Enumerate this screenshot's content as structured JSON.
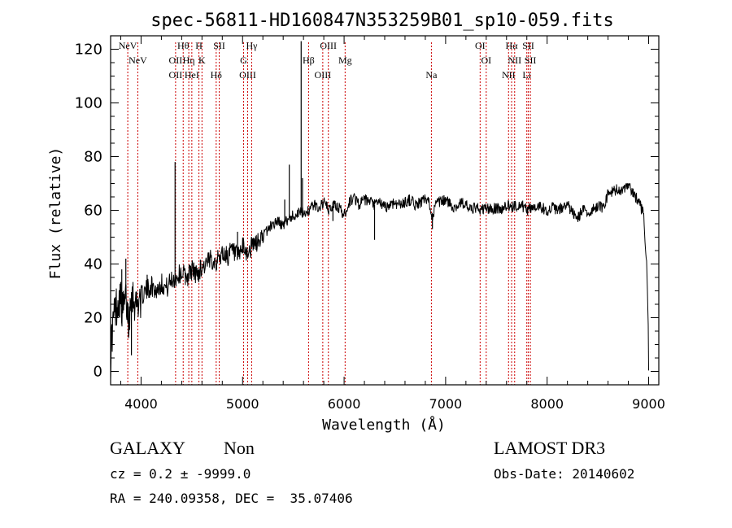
{
  "chart_data": {
    "type": "line",
    "title": "spec-56811-HD160847N353259B01_sp10-059.fits",
    "xlabel": "Wavelength (Å)",
    "ylabel": "Flux (relative)",
    "xlim": [
      3700,
      9100
    ],
    "ylim": [
      -5,
      125
    ],
    "xticks": [
      4000,
      5000,
      6000,
      7000,
      8000,
      9000
    ],
    "yticks": [
      0,
      20,
      40,
      60,
      80,
      100,
      120
    ],
    "grid": false,
    "series": [
      {
        "name": "spectrum",
        "x": [
          3700,
          3710,
          3730,
          3760,
          3790,
          3820,
          3850,
          3880,
          3900,
          3920,
          3950,
          3980,
          4000,
          4050,
          4100,
          4150,
          4200,
          4250,
          4300,
          4350,
          4400,
          4450,
          4500,
          4550,
          4600,
          4650,
          4700,
          4750,
          4800,
          4850,
          4900,
          4950,
          5000,
          5050,
          5100,
          5150,
          5200,
          5250,
          5300,
          5350,
          5400,
          5450,
          5500,
          5550,
          5600,
          5650,
          5700,
          5750,
          5800,
          5850,
          5900,
          5950,
          6000,
          6050,
          6100,
          6150,
          6200,
          6250,
          6300,
          6350,
          6400,
          6450,
          6500,
          6550,
          6600,
          6650,
          6700,
          6750,
          6800,
          6850,
          6870,
          6900,
          6950,
          7000,
          7050,
          7100,
          7150,
          7200,
          7250,
          7300,
          7350,
          7400,
          7450,
          7500,
          7550,
          7600,
          7650,
          7700,
          7750,
          7800,
          7850,
          7900,
          7950,
          8000,
          8050,
          8100,
          8150,
          8200,
          8250,
          8300,
          8350,
          8400,
          8450,
          8500,
          8550,
          8600,
          8650,
          8700,
          8750,
          8800,
          8850,
          8900,
          8950,
          8980,
          8995,
          9000
        ],
        "y": [
          5,
          12,
          20,
          25,
          28,
          22,
          27,
          18,
          30,
          28,
          25,
          27,
          28,
          30,
          32,
          30,
          33,
          31,
          34,
          35,
          37,
          35,
          38,
          36,
          39,
          40,
          42,
          41,
          44,
          43,
          45,
          42,
          46,
          44,
          47,
          48,
          50,
          53,
          55,
          56,
          54,
          57,
          58,
          59,
          59,
          60,
          62,
          61,
          63,
          60,
          62,
          61,
          58,
          63,
          65,
          62,
          64,
          63,
          62,
          63,
          61,
          62,
          63,
          62,
          63,
          64,
          62,
          63,
          64,
          62,
          57,
          62,
          63,
          64,
          62,
          61,
          63,
          62,
          60,
          61,
          60,
          61,
          60,
          61,
          60,
          62,
          61,
          62,
          62,
          60,
          61,
          62,
          61,
          60,
          61,
          60,
          61,
          62,
          59,
          57,
          60,
          59,
          60,
          62,
          61,
          66,
          67,
          68,
          67,
          69,
          66,
          64,
          58,
          40,
          20,
          0
        ]
      }
    ],
    "spikes": [
      {
        "x": 3810,
        "y": 38
      },
      {
        "x": 3850,
        "y": 42
      },
      {
        "x": 3905,
        "y": 6
      },
      {
        "x": 4060,
        "y": 36
      },
      {
        "x": 4335,
        "y": 78
      },
      {
        "x": 4950,
        "y": 52
      },
      {
        "x": 5415,
        "y": 64
      },
      {
        "x": 5460,
        "y": 77
      },
      {
        "x": 5577,
        "y": 123
      },
      {
        "x": 5590,
        "y": 72
      },
      {
        "x": 5890,
        "y": 56
      },
      {
        "x": 6300,
        "y": 49
      },
      {
        "x": 6870,
        "y": 53
      }
    ],
    "lines": [
      {
        "x": 3869,
        "labels": [
          "NeV"
        ]
      },
      {
        "x": 3968,
        "labels": [
          "NeV"
        ]
      },
      {
        "x": 4340,
        "labels": [
          "OII",
          "OII"
        ]
      },
      {
        "x": 4415,
        "labels": [
          "Hθ"
        ]
      },
      {
        "x": 4470,
        "labels": [
          "Hη"
        ]
      },
      {
        "x": 4500,
        "labels": [
          "HeI"
        ]
      },
      {
        "x": 4570,
        "labels": [
          "H"
        ]
      },
      {
        "x": 4600,
        "labels": [
          "K"
        ]
      },
      {
        "x": 4740,
        "labels": [
          "Hδ"
        ]
      },
      {
        "x": 4770,
        "labels": [
          "SII"
        ]
      },
      {
        "x": 5010,
        "labels": [
          "G"
        ]
      },
      {
        "x": 5050,
        "labels": [
          "OIII"
        ]
      },
      {
        "x": 5090,
        "labels": [
          "Hγ"
        ]
      },
      {
        "x": 5650,
        "labels": [
          "Hβ"
        ]
      },
      {
        "x": 5790,
        "labels": [
          "OIII"
        ]
      },
      {
        "x": 5845,
        "labels": [
          "OIII"
        ]
      },
      {
        "x": 6010,
        "labels": [
          "Mg"
        ]
      },
      {
        "x": 6860,
        "labels": [
          "Na"
        ]
      },
      {
        "x": 7340,
        "labels": [
          "OI"
        ]
      },
      {
        "x": 7400,
        "labels": [
          "OI"
        ]
      },
      {
        "x": 7620,
        "labels": [
          "NII"
        ]
      },
      {
        "x": 7650,
        "labels": [
          "Hα"
        ]
      },
      {
        "x": 7680,
        "labels": [
          "NII"
        ]
      },
      {
        "x": 7800,
        "labels": [
          "Li"
        ]
      },
      {
        "x": 7815,
        "labels": [
          "SII"
        ]
      },
      {
        "x": 7835,
        "labels": [
          "SII"
        ]
      }
    ]
  },
  "info": {
    "class_label": "GALAXY",
    "subclass_label": "Non",
    "survey": "LAMOST DR3",
    "redshift_text": "cz = 0.2 ± -9999.0",
    "obs_date_text": "Obs-Date: 20140602",
    "coords_text": "RA = 240.09358, DEC =  35.07406"
  }
}
